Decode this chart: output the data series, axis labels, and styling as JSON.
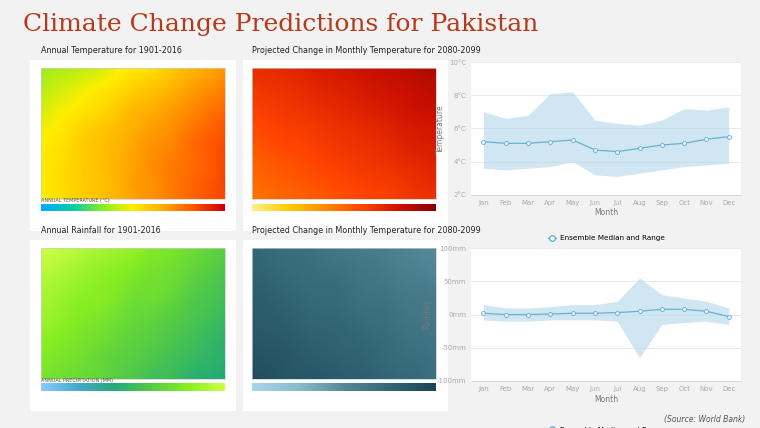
{
  "title": "Climate Change Predictions for Pakistan",
  "title_color": "#b5391a",
  "title_fontsize": 18,
  "background_color": "#f2f2f2",
  "top_left_label": "Annual Temperature for 1901-2016",
  "top_mid_label": "Projected Change in Monthly Temperature for 2080-2099",
  "bot_left_label": "Annual Rainfall for 1901-2016",
  "bot_mid_label": "Projected Change in Monthly Temperature for 2080-2099",
  "months": [
    "Jan",
    "Feb",
    "Mar",
    "Apr",
    "May",
    "Jun",
    "Jul",
    "Aug",
    "Sep",
    "Oct",
    "Nov",
    "Dec"
  ],
  "temp_median": [
    5.2,
    5.1,
    5.1,
    5.2,
    5.3,
    4.7,
    4.6,
    4.8,
    5.0,
    5.1,
    5.35,
    5.5
  ],
  "temp_upper": [
    7.0,
    6.6,
    6.8,
    8.1,
    8.2,
    6.5,
    6.3,
    6.2,
    6.5,
    7.2,
    7.1,
    7.3
  ],
  "temp_lower": [
    3.6,
    3.5,
    3.6,
    3.7,
    4.0,
    3.2,
    3.1,
    3.3,
    3.5,
    3.7,
    3.8,
    3.9
  ],
  "temp_ylim": [
    2,
    10
  ],
  "temp_yticks": [
    2,
    4,
    6,
    8,
    10
  ],
  "temp_ytick_labels": [
    "2°C",
    "4°C",
    "6°C",
    "8°C",
    "10°C"
  ],
  "temp_ylabel": "Temperature",
  "rain_median": [
    2,
    0,
    0,
    1,
    2,
    2,
    3,
    5,
    8,
    8,
    5,
    -3
  ],
  "rain_upper": [
    15,
    10,
    10,
    12,
    15,
    15,
    20,
    55,
    30,
    25,
    20,
    10
  ],
  "rain_lower": [
    -8,
    -10,
    -10,
    -8,
    -8,
    -8,
    -10,
    -65,
    -15,
    -12,
    -10,
    -15
  ],
  "rain_ylim": [
    -100,
    100
  ],
  "rain_yticks": [
    -100,
    -50,
    0,
    50,
    100
  ],
  "rain_ytick_labels": [
    "-100mm",
    "-50mm",
    "0mm",
    "50mm",
    "100mm"
  ],
  "rain_ylabel": "Rainfall",
  "line_color": "#6ab0d4",
  "fill_color": "#b8d9ec",
  "marker_color": "#6ab0d4",
  "marker_face": "white",
  "legend_label": "Ensemble Median and Range",
  "source_text": "(Source: World Bank)"
}
